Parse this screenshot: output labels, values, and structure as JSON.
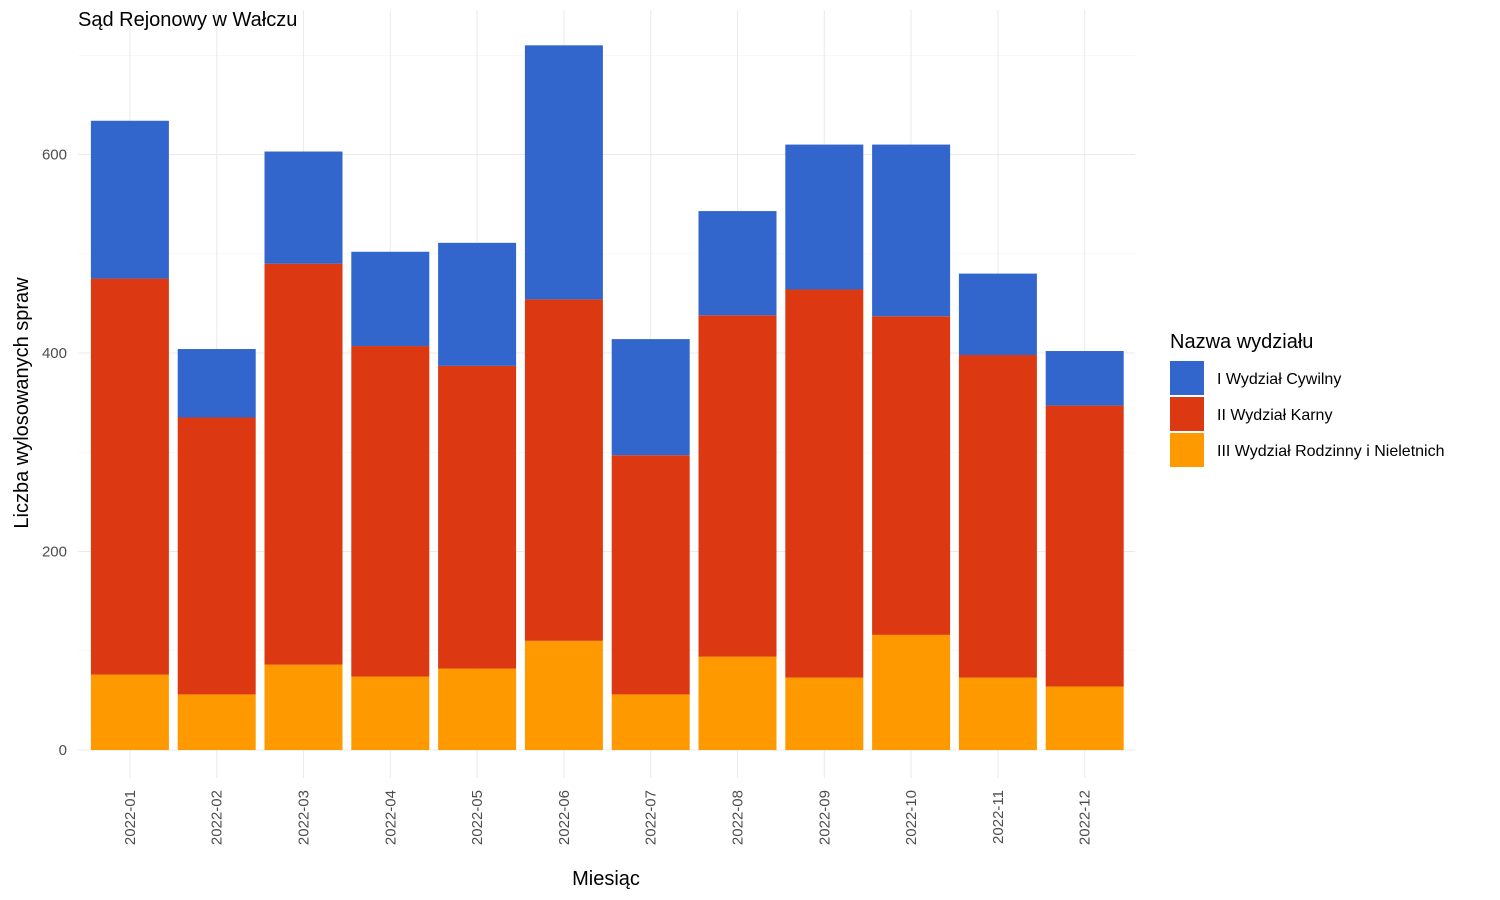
{
  "chart_data": {
    "type": "bar",
    "stacked": true,
    "title": "Sąd Rejonowy w Wałczu",
    "xlabel": "Miesiąc",
    "ylabel": "Liczba wylosowanych spraw",
    "ylim": [
      0,
      720
    ],
    "yticks": [
      0,
      200,
      400,
      600
    ],
    "grid": true,
    "legend_title": "Nazwa wydziału",
    "legend_position": "right",
    "categories": [
      "2022-01",
      "2022-02",
      "2022-03",
      "2022-04",
      "2022-05",
      "2022-06",
      "2022-07",
      "2022-08",
      "2022-09",
      "2022-10",
      "2022-11",
      "2022-12"
    ],
    "series": [
      {
        "name": "I Wydział Cywilny",
        "color": "#3366cc",
        "values": [
          159,
          69,
          113,
          95,
          124,
          256,
          117,
          105,
          146,
          173,
          82,
          55
        ]
      },
      {
        "name": "II Wydział Karny",
        "color": "#dc3912",
        "values": [
          399,
          279,
          404,
          333,
          305,
          344,
          241,
          344,
          391,
          321,
          325,
          283
        ]
      },
      {
        "name": "III Wydział Rodzinny i Nieletnich",
        "color": "#ff9900",
        "values": [
          76,
          56,
          86,
          74,
          82,
          110,
          56,
          94,
          73,
          116,
          73,
          64
        ]
      }
    ]
  }
}
